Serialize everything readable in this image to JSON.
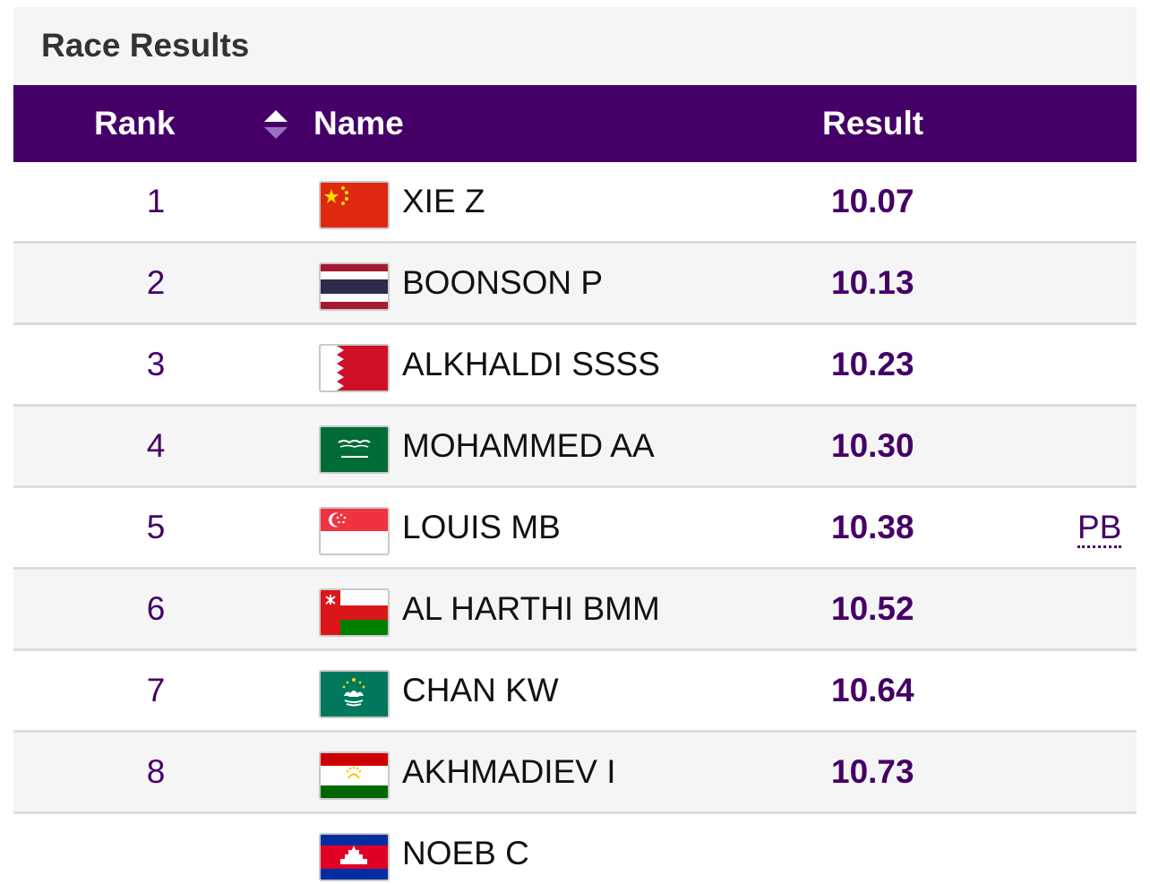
{
  "panel": {
    "title": "Race Results"
  },
  "table": {
    "headers": {
      "rank": "Rank",
      "name": "Name",
      "result": "Result"
    },
    "sort_icon": "sort-updown-icon",
    "rows": [
      {
        "rank": "1",
        "name": "XIE Z",
        "result": "10.07",
        "note": "",
        "flag": "china-flag"
      },
      {
        "rank": "2",
        "name": "BOONSON P",
        "result": "10.13",
        "note": "",
        "flag": "thailand-flag"
      },
      {
        "rank": "3",
        "name": "ALKHALDI SSSS",
        "result": "10.23",
        "note": "",
        "flag": "bahrain-flag"
      },
      {
        "rank": "4",
        "name": "MOHAMMED AA",
        "result": "10.30",
        "note": "",
        "flag": "saudi-arabia-flag"
      },
      {
        "rank": "5",
        "name": "LOUIS MB",
        "result": "10.38",
        "note": "PB",
        "flag": "singapore-flag"
      },
      {
        "rank": "6",
        "name": "AL HARTHI BMM",
        "result": "10.52",
        "note": "",
        "flag": "oman-flag"
      },
      {
        "rank": "7",
        "name": "CHAN KW",
        "result": "10.64",
        "note": "",
        "flag": "macau-flag"
      },
      {
        "rank": "8",
        "name": "AKHMADIEV I",
        "result": "10.73",
        "note": "",
        "flag": "tajikistan-flag"
      },
      {
        "rank": "",
        "name": "NOEB C",
        "result": "",
        "note": "",
        "flag": "cambodia-flag"
      }
    ]
  },
  "colors": {
    "header_bg": "#450067",
    "accent": "#450067",
    "row_divider": "#dcdcdc"
  }
}
